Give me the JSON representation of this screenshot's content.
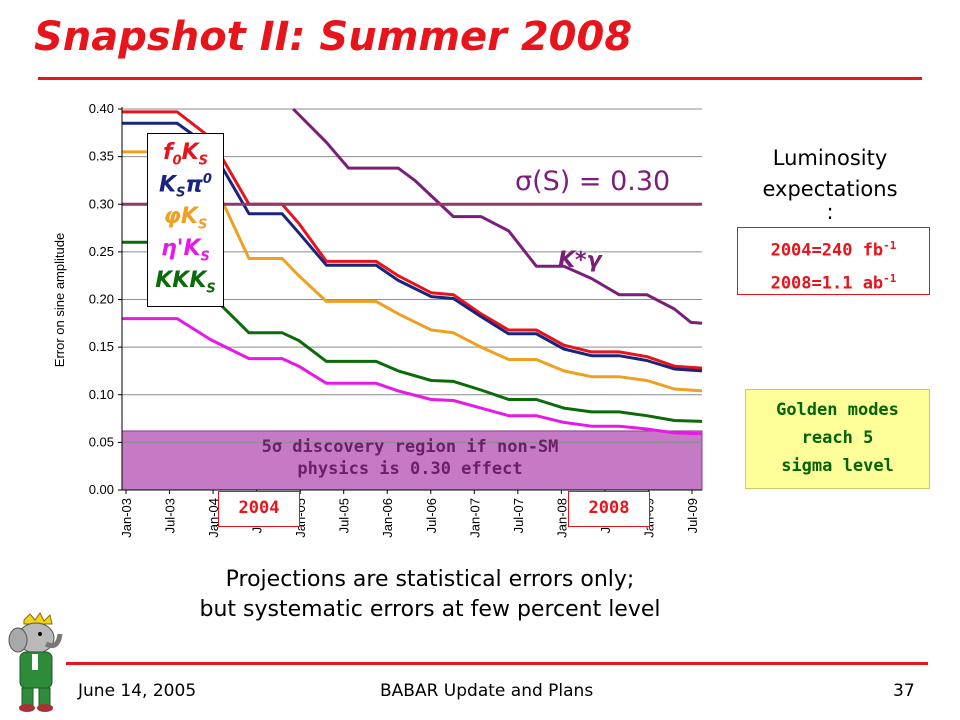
{
  "slide": {
    "title": "Snapshot II: Summer 2008",
    "footer_date": "June 14, 2005",
    "footer_center": "BABAR Update and Plans",
    "footer_page": "37"
  },
  "colors": {
    "title_red": "#e8141c",
    "threshold_line": "#8e3a6c",
    "region_fill": "#c47ac4",
    "golden_fill": "#ffff99",
    "golden_text": "#006400"
  },
  "legend": [
    {
      "base": "f",
      "sub": "0",
      "mid": "K",
      "sub2": "S",
      "sup": "",
      "color": "#e8141c"
    },
    {
      "base": "K",
      "sub": "S",
      "mid": "π",
      "sub2": "",
      "sup": "0",
      "color": "#1a237e"
    },
    {
      "base": "φ",
      "sub": "",
      "mid": "K",
      "sub2": "S",
      "sup": "",
      "color": "#f0a020"
    },
    {
      "base": "η",
      "sub": "",
      "mid": "'K",
      "sub2": "S",
      "sup": "",
      "color": "#e619e6"
    },
    {
      "base": "KKK",
      "sub": "",
      "mid": "",
      "sub2": "S",
      "sup": "",
      "color": "#0b6b0b"
    }
  ],
  "annotations": {
    "sigma_label": "σ(S) = 0.30",
    "kstar_label": "K*γ",
    "discovery_line1": "5σ discovery region if non-SM",
    "discovery_line2": "physics is 0.30 effect",
    "year_2004": "2004",
    "year_2008": "2008",
    "lumi_title_line1": "Luminosity",
    "lumi_title_line2": "expectations",
    "lumi_title_line3": ":",
    "lumi_2004": "2004=240 fb",
    "lumi_2004_exp": "-1",
    "lumi_2008": "2008=1.1 ab",
    "lumi_2008_exp": "-1",
    "golden_line1": "Golden modes",
    "golden_line2": "reach 5",
    "golden_line3": "sigma level",
    "note_line1": "Projections are statistical errors only;",
    "note_line2": "but systematic errors at few percent level"
  },
  "chart_data": {
    "type": "line",
    "ylabel": "Error on sine amplitude",
    "xlabel": "",
    "ylim": [
      0,
      0.4
    ],
    "yticks": [
      "0.00",
      "0.05",
      "0.10",
      "0.15",
      "0.20",
      "0.25",
      "0.30",
      "0.35",
      "0.40"
    ],
    "x_tick_labels": [
      "Jan-03",
      "Jul-03",
      "Jan-04",
      "Jul-04",
      "Jan-05",
      "Jul-05",
      "Jan-06",
      "Jul-06",
      "Jan-07",
      "Jul-07",
      "Jan-08",
      "Jul-08",
      "Jan-09",
      "Jul-09"
    ],
    "threshold": 0.3,
    "discovery_region": [
      0,
      0.062
    ],
    "series": [
      {
        "name": "f0KS",
        "color": "#e8141c",
        "points": [
          [
            0,
            0.397
          ],
          [
            2,
            0.397
          ],
          [
            3.2,
            0.37
          ],
          [
            4.6,
            0.3
          ],
          [
            5.8,
            0.3
          ],
          [
            6.4,
            0.28
          ],
          [
            7.4,
            0.24
          ],
          [
            9.2,
            0.24
          ],
          [
            10,
            0.225
          ],
          [
            11.2,
            0.207
          ],
          [
            12,
            0.205
          ],
          [
            13,
            0.185
          ],
          [
            14,
            0.168
          ],
          [
            15,
            0.168
          ],
          [
            16,
            0.152
          ],
          [
            17,
            0.145
          ],
          [
            18,
            0.145
          ],
          [
            19,
            0.14
          ],
          [
            20,
            0.13
          ],
          [
            21,
            0.128
          ]
        ]
      },
      {
        "name": "KSπ0",
        "color": "#1a237e",
        "points": [
          [
            0,
            0.385
          ],
          [
            2,
            0.385
          ],
          [
            3.2,
            0.36
          ],
          [
            4.6,
            0.29
          ],
          [
            5.8,
            0.29
          ],
          [
            6.4,
            0.27
          ],
          [
            7.4,
            0.236
          ],
          [
            9.2,
            0.236
          ],
          [
            10,
            0.22
          ],
          [
            11.2,
            0.203
          ],
          [
            12,
            0.201
          ],
          [
            13,
            0.182
          ],
          [
            14,
            0.164
          ],
          [
            15,
            0.164
          ],
          [
            16,
            0.148
          ],
          [
            17,
            0.141
          ],
          [
            18,
            0.141
          ],
          [
            19,
            0.136
          ],
          [
            20,
            0.127
          ],
          [
            21,
            0.125
          ]
        ]
      },
      {
        "name": "φKS",
        "color": "#f0a020",
        "points": [
          [
            0,
            0.355
          ],
          [
            2,
            0.355
          ],
          [
            3.2,
            0.33
          ],
          [
            4.6,
            0.243
          ],
          [
            5.8,
            0.243
          ],
          [
            6.4,
            0.225
          ],
          [
            7.4,
            0.198
          ],
          [
            9.2,
            0.198
          ],
          [
            10,
            0.185
          ],
          [
            11.2,
            0.168
          ],
          [
            12,
            0.165
          ],
          [
            13,
            0.15
          ],
          [
            14,
            0.137
          ],
          [
            15,
            0.137
          ],
          [
            16,
            0.125
          ],
          [
            17,
            0.119
          ],
          [
            18,
            0.119
          ],
          [
            19,
            0.115
          ],
          [
            20,
            0.106
          ],
          [
            21,
            0.104
          ]
        ]
      },
      {
        "name": "η'KS",
        "color": "#e619e6",
        "points": [
          [
            0,
            0.18
          ],
          [
            2,
            0.18
          ],
          [
            3.2,
            0.158
          ],
          [
            4.6,
            0.138
          ],
          [
            5.8,
            0.138
          ],
          [
            6.4,
            0.13
          ],
          [
            7.4,
            0.112
          ],
          [
            9.2,
            0.112
          ],
          [
            10,
            0.104
          ],
          [
            11.2,
            0.095
          ],
          [
            12,
            0.094
          ],
          [
            13,
            0.086
          ],
          [
            14,
            0.078
          ],
          [
            15,
            0.078
          ],
          [
            16,
            0.071
          ],
          [
            17,
            0.067
          ],
          [
            18,
            0.067
          ],
          [
            19,
            0.064
          ],
          [
            20,
            0.06
          ],
          [
            21,
            0.059
          ]
        ]
      },
      {
        "name": "KKKS",
        "color": "#0b6b0b",
        "points": [
          [
            0,
            0.26
          ],
          [
            2,
            0.26
          ],
          [
            3.2,
            0.205
          ],
          [
            4.6,
            0.165
          ],
          [
            5.8,
            0.165
          ],
          [
            6.4,
            0.157
          ],
          [
            7.4,
            0.135
          ],
          [
            9.2,
            0.135
          ],
          [
            10,
            0.125
          ],
          [
            11.2,
            0.115
          ],
          [
            12,
            0.114
          ],
          [
            13,
            0.105
          ],
          [
            14,
            0.095
          ],
          [
            15,
            0.095
          ],
          [
            16,
            0.086
          ],
          [
            17,
            0.082
          ],
          [
            18,
            0.082
          ],
          [
            19,
            0.078
          ],
          [
            20,
            0.073
          ],
          [
            21,
            0.072
          ]
        ]
      },
      {
        "name": "K*γ",
        "color": "#7a1e7a",
        "points": [
          [
            6.2,
            0.4
          ],
          [
            7.4,
            0.365
          ],
          [
            8.2,
            0.338
          ],
          [
            10,
            0.338
          ],
          [
            10.6,
            0.325
          ],
          [
            12,
            0.287
          ],
          [
            13,
            0.287
          ],
          [
            14,
            0.272
          ],
          [
            15,
            0.235
          ],
          [
            16,
            0.235
          ],
          [
            17,
            0.222
          ],
          [
            18,
            0.205
          ],
          [
            19,
            0.205
          ],
          [
            20,
            0.19
          ],
          [
            20.6,
            0.176
          ],
          [
            21,
            0.175
          ]
        ]
      }
    ]
  }
}
